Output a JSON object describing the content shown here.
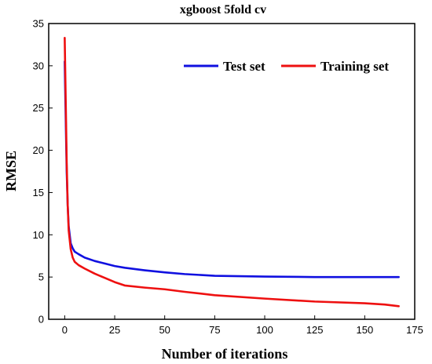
{
  "chart_data": {
    "type": "line",
    "title": "xgboost 5fold cv",
    "xlabel": "Number of iterations",
    "ylabel": "RMSE",
    "xlim": [
      -8,
      175
    ],
    "ylim": [
      0,
      35
    ],
    "xticks": [
      0,
      25,
      50,
      75,
      100,
      125,
      150,
      175
    ],
    "yticks": [
      0,
      5,
      10,
      15,
      20,
      25,
      30,
      35
    ],
    "grid": false,
    "legend": {
      "placement": "top-right",
      "orientation": "horizontal"
    },
    "series": [
      {
        "name": "Test set",
        "color": "#1010e0",
        "x": [
          0,
          0.5,
          1,
          1.5,
          2,
          3,
          4,
          5,
          7,
          10,
          15,
          20,
          25,
          30,
          40,
          50,
          60,
          75,
          100,
          125,
          150,
          167
        ],
        "y": [
          30.5,
          24.0,
          17.5,
          13.5,
          11.0,
          9.0,
          8.4,
          8.0,
          7.7,
          7.3,
          6.9,
          6.6,
          6.3,
          6.1,
          5.8,
          5.55,
          5.35,
          5.15,
          5.05,
          5.0,
          5.0,
          5.0
        ]
      },
      {
        "name": "Training set",
        "color": "#ee1010",
        "x": [
          0,
          0.5,
          1,
          1.5,
          2,
          3,
          4,
          5,
          7,
          10,
          15,
          20,
          25,
          30,
          40,
          50,
          60,
          75,
          100,
          125,
          150,
          160,
          167
        ],
        "y": [
          33.3,
          26.0,
          18.5,
          13.5,
          10.5,
          8.3,
          7.3,
          6.8,
          6.4,
          6.0,
          5.4,
          4.9,
          4.4,
          4.0,
          3.75,
          3.55,
          3.25,
          2.85,
          2.45,
          2.1,
          1.9,
          1.75,
          1.55
        ]
      }
    ]
  }
}
